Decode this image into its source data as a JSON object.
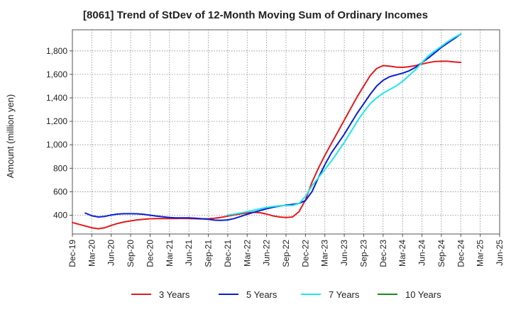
{
  "chart_data": {
    "type": "line",
    "title": "[8061]  Trend of StDev of 12-Month Moving Sum of Ordinary Incomes",
    "xlabel": "",
    "ylabel": "Amount (million yen)",
    "ylim": [
      240,
      1980
    ],
    "y_ticks": [
      400,
      600,
      800,
      1000,
      1200,
      1400,
      1600,
      1800
    ],
    "y_tick_labels": [
      "400",
      "600",
      "800",
      "1,000",
      "1,200",
      "1,400",
      "1,600",
      "1,800"
    ],
    "x_range": [
      0,
      66
    ],
    "x_ticks": [
      0,
      3,
      6,
      9,
      12,
      15,
      18,
      21,
      24,
      27,
      30,
      33,
      36,
      39,
      42,
      45,
      48,
      51,
      54,
      57,
      60,
      63,
      66
    ],
    "x_tick_labels": [
      "Dec-19",
      "Mar-20",
      "Jun-20",
      "Sep-20",
      "Dec-20",
      "Mar-21",
      "Jun-21",
      "Sep-21",
      "Dec-21",
      "Mar-22",
      "Jun-22",
      "Sep-22",
      "Dec-22",
      "Mar-23",
      "Jun-23",
      "Sep-23",
      "Dec-23",
      "Mar-24",
      "Jun-24",
      "Sep-24",
      "Dec-24",
      "Mar-25",
      "Jun-25"
    ],
    "grid": true,
    "legend_position": "bottom",
    "series": [
      {
        "name": "3 Years",
        "color": "#e31a1c",
        "x": [
          0,
          1,
          2,
          3,
          4,
          5,
          6,
          7,
          8,
          9,
          10,
          11,
          12,
          13,
          14,
          15,
          16,
          17,
          18,
          19,
          20,
          21,
          22,
          23,
          24,
          25,
          26,
          27,
          28,
          29,
          30,
          31,
          32,
          33,
          34,
          35,
          36,
          37,
          38,
          39,
          40,
          41,
          42,
          43,
          44,
          45,
          46,
          47,
          48,
          49,
          50,
          51,
          52,
          53,
          54,
          55,
          56,
          57,
          58,
          59,
          60
        ],
        "values": [
          338,
          323,
          308,
          293,
          285,
          293,
          313,
          330,
          343,
          352,
          360,
          365,
          370,
          372,
          372,
          372,
          372,
          373,
          372,
          370,
          368,
          370,
          375,
          382,
          392,
          402,
          412,
          420,
          425,
          421,
          410,
          394,
          385,
          380,
          385,
          430,
          530,
          680,
          800,
          910,
          1010,
          1110,
          1210,
          1310,
          1410,
          1500,
          1590,
          1650,
          1675,
          1670,
          1662,
          1660,
          1665,
          1675,
          1688,
          1700,
          1710,
          1712,
          1712,
          1706,
          1702
        ]
      },
      {
        "name": "5 Years",
        "color": "#0a1fd2",
        "x": [
          2,
          3,
          4,
          5,
          6,
          7,
          8,
          9,
          10,
          11,
          12,
          13,
          14,
          15,
          16,
          17,
          18,
          19,
          20,
          21,
          22,
          23,
          24,
          25,
          26,
          27,
          28,
          29,
          30,
          31,
          32,
          33,
          34,
          35,
          36,
          37,
          38,
          39,
          40,
          41,
          42,
          43,
          44,
          45,
          46,
          47,
          48,
          49,
          50,
          51,
          52,
          53,
          54,
          55,
          56,
          57,
          58,
          59,
          60
        ],
        "values": [
          418,
          395,
          385,
          390,
          402,
          410,
          413,
          413,
          412,
          408,
          400,
          393,
          386,
          381,
          378,
          378,
          377,
          375,
          370,
          365,
          358,
          356,
          360,
          372,
          390,
          408,
          425,
          440,
          455,
          468,
          478,
          485,
          492,
          500,
          525,
          600,
          720,
          830,
          930,
          1010,
          1090,
          1180,
          1270,
          1350,
          1430,
          1500,
          1550,
          1580,
          1595,
          1610,
          1630,
          1660,
          1700,
          1740,
          1785,
          1830,
          1868,
          1905,
          1945
        ]
      },
      {
        "name": "7 Years",
        "color": "#1fe8ea",
        "x": [
          24,
          25,
          26,
          27,
          28,
          29,
          30,
          31,
          32,
          33,
          34,
          35,
          36,
          37,
          38,
          39,
          40,
          41,
          42,
          43,
          44,
          45,
          46,
          47,
          48,
          49,
          50,
          51,
          52,
          53,
          54,
          55,
          56,
          57,
          58,
          59,
          60
        ],
        "values": [
          402,
          410,
          420,
          430,
          443,
          455,
          466,
          475,
          480,
          482,
          483,
          500,
          560,
          650,
          720,
          790,
          860,
          940,
          1020,
          1110,
          1200,
          1280,
          1350,
          1400,
          1440,
          1470,
          1500,
          1540,
          1590,
          1640,
          1700,
          1760,
          1800,
          1840,
          1880,
          1915,
          1945
        ]
      },
      {
        "name": "10 Years",
        "color": "#198c19",
        "x": [],
        "values": []
      }
    ]
  }
}
